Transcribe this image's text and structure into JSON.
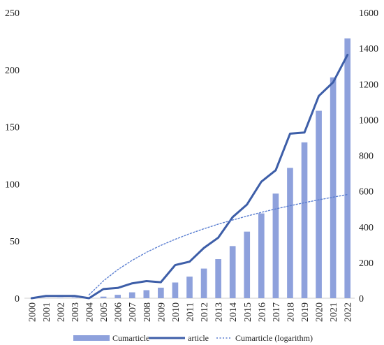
{
  "chart_data": {
    "type": "bar",
    "categories": [
      "2000",
      "2001",
      "2002",
      "2003",
      "2004",
      "2005",
      "2006",
      "2007",
      "2008",
      "2009",
      "2010",
      "2011",
      "2012",
      "2013",
      "2014",
      "2015",
      "2016",
      "2017",
      "2018",
      "2019",
      "2020",
      "2021",
      "2022"
    ],
    "series": [
      {
        "name": "Cumarticle",
        "kind": "bar",
        "axis": "right",
        "color": "#8ea1dc",
        "values": [
          0,
          1,
          2,
          3,
          4,
          9,
          19,
          33,
          45,
          59,
          88,
          121,
          166,
          219,
          292,
          373,
          475,
          586,
          730,
          873,
          1050,
          1237,
          1455
        ]
      },
      {
        "name": "article",
        "kind": "line",
        "axis": "left",
        "color": "#3d5ea8",
        "values": [
          0,
          2,
          2,
          2,
          0,
          8,
          9,
          13,
          15,
          14,
          29,
          32,
          44,
          53,
          71,
          82,
          102,
          112,
          144,
          145,
          177,
          189,
          213
        ]
      },
      {
        "name": "Cumarticle (logarithm)",
        "kind": "line-dotted",
        "axis": "right",
        "color": "#5b7fd1",
        "values": [
          null,
          null,
          null,
          null,
          19,
          97,
          160,
          212,
          257,
          296,
          330,
          361,
          389,
          415,
          438,
          460,
          481,
          500,
          518,
          535,
          551,
          566,
          581
        ]
      }
    ],
    "y_left": {
      "ticks": [
        "0",
        "50",
        "100",
        "150",
        "200",
        "250"
      ],
      "ylim": [
        0,
        250
      ]
    },
    "y_right": {
      "ticks": [
        "0",
        "200",
        "400",
        "600",
        "800",
        "1000",
        "1200",
        "1400",
        "1600"
      ],
      "ylim": [
        0,
        1600
      ]
    },
    "legend_position": "bottom",
    "grid": false,
    "title": "",
    "xlabel": "",
    "ylabel": ""
  }
}
